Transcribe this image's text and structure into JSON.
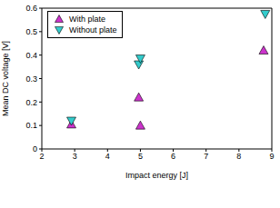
{
  "chart_data": {
    "type": "scatter",
    "xlabel": "Impact energy [J]",
    "ylabel": "Mean DC voltage [V]",
    "xlim": [
      2,
      9
    ],
    "xticks": [
      2,
      3,
      4,
      5,
      6,
      7,
      8,
      9
    ],
    "ylim": [
      0,
      0.6
    ],
    "yticks": [
      0,
      0.1,
      0.2,
      0.3,
      0.4,
      0.5,
      0.6
    ],
    "grid": false,
    "legend": "upper left",
    "series": [
      {
        "name": "With plate",
        "color": "#cc33cc",
        "marker": "triangle-up",
        "x": [
          2.9,
          4.95,
          5.0,
          8.75
        ],
        "values": [
          0.105,
          0.22,
          0.1,
          0.42
        ]
      },
      {
        "name": "Without plate",
        "color": "#33cccc",
        "marker": "triangle-down",
        "x": [
          2.9,
          4.95,
          5.0,
          8.8
        ],
        "values": [
          0.12,
          0.36,
          0.385,
          0.575
        ]
      }
    ]
  }
}
